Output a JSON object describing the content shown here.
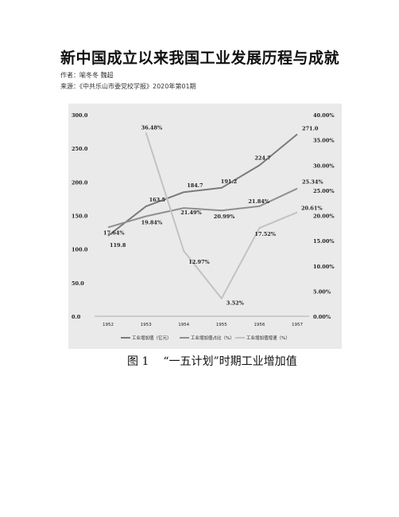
{
  "document": {
    "title": "新中国成立以来我国工业发展历程与成就",
    "author": "作者：喻冬冬 魏超",
    "source": "来源：《中共乐山市委党校学报》2020年第01期",
    "figure_number": "图 1",
    "figure_caption": "“一五计划”时期工业增加值"
  },
  "chart_data": {
    "type": "line",
    "categories": [
      "1952",
      "1953",
      "1954",
      "1955",
      "1956",
      "1957"
    ],
    "y_left": {
      "min": 0,
      "max": 300,
      "ticks": [
        "0.0",
        "50.0",
        "100.0",
        "150.0",
        "200.0",
        "250.0",
        "300.0"
      ]
    },
    "y_right": {
      "min": 0,
      "max": 40,
      "ticks": [
        "0.00%",
        "5.00%",
        "10.00%",
        "15.00%",
        "20.00%",
        "25.00%",
        "30.00%",
        "35.00%",
        "40.00%"
      ]
    },
    "grid": false,
    "legend_position": "bottom",
    "series": [
      {
        "name": "工业增加值（亿元）",
        "axis": "left",
        "color": "#7a7a7a",
        "values": [
          119.8,
          163.5,
          184.7,
          191.2,
          224.7,
          271.0
        ],
        "labels": [
          "119.8",
          "163.5",
          "184.7",
          "191.2",
          "224.7",
          "271.0"
        ]
      },
      {
        "name": "工业增加值占比（%）",
        "axis": "right",
        "color": "#8f8f8f",
        "values": [
          17.64,
          19.84,
          21.49,
          20.99,
          21.84,
          25.34
        ],
        "labels": [
          "17.64%",
          "19.84%",
          "21.49%",
          "20.99%",
          "21.84%",
          "25.34%"
        ]
      },
      {
        "name": "工业增加值增速（%）",
        "axis": "right",
        "color": "#c2c2c2",
        "values": [
          null,
          36.48,
          12.97,
          3.52,
          17.52,
          20.61
        ],
        "labels": [
          null,
          "36.48%",
          "12.97%",
          "3.52%",
          "17.52%",
          "20.61%"
        ]
      }
    ]
  }
}
